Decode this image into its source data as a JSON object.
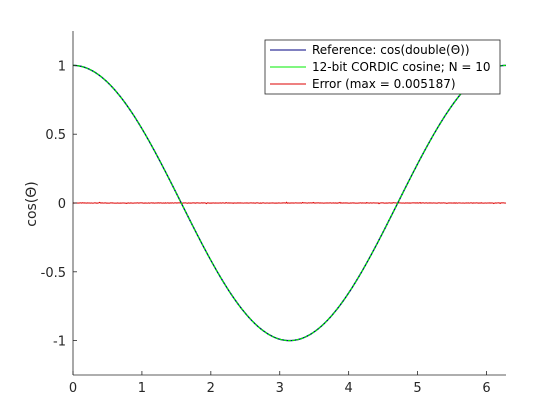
{
  "chart_data": {
    "type": "line",
    "ylabel": "cos(Θ)",
    "xlabel": "",
    "title": "",
    "xlim": [
      0,
      6.2832
    ],
    "ylim": [
      -1.25,
      1.25
    ],
    "x_ticks": [
      0,
      1,
      2,
      3,
      4,
      5,
      6
    ],
    "y_ticks": [
      -1,
      -0.5,
      0,
      0.5,
      1
    ],
    "x_tick_labels": [
      "0",
      "1",
      "2",
      "3",
      "4",
      "5",
      "6"
    ],
    "y_tick_labels": [
      "-1",
      "-0.5",
      "0",
      "0.5",
      "1"
    ],
    "grid": false,
    "legend_position": "top-right",
    "series": [
      {
        "name": "Reference: cos(double(Θ))",
        "color": "#000080",
        "function": "cos",
        "x_range": [
          0,
          6.2832
        ],
        "sample_points": [
          [
            0,
            1
          ],
          [
            0.5,
            0.8776
          ],
          [
            1,
            0.5403
          ],
          [
            1.5708,
            0
          ],
          [
            2,
            -0.4161
          ],
          [
            2.5,
            -0.8011
          ],
          [
            3.1416,
            -1
          ],
          [
            3.5,
            -0.9365
          ],
          [
            4,
            -0.6536
          ],
          [
            4.7124,
            0
          ],
          [
            5,
            0.2837
          ],
          [
            5.5,
            0.7087
          ],
          [
            6.2832,
            1
          ]
        ]
      },
      {
        "name": "12-bit CORDIC cosine; N = 10",
        "color": "#00ee00",
        "function": "cos",
        "x_range": [
          0,
          6.2832
        ],
        "sample_points": [
          [
            0,
            1
          ],
          [
            0.5,
            0.8774
          ],
          [
            1,
            0.5405
          ],
          [
            1.5708,
            0.001
          ],
          [
            2,
            -0.4165
          ],
          [
            2.5,
            -0.8008
          ],
          [
            3.1416,
            -0.9995
          ],
          [
            3.5,
            -0.9368
          ],
          [
            4,
            -0.6533
          ],
          [
            4.7124,
            -0.001
          ],
          [
            5,
            0.2834
          ],
          [
            5.5,
            0.709
          ],
          [
            6.2832,
            0.9998
          ]
        ]
      },
      {
        "name": "Error (max = 0.005187)",
        "color": "#dd0000",
        "function": "error",
        "x_range": [
          0,
          6.2832
        ],
        "max_abs": 0.005187
      }
    ]
  }
}
